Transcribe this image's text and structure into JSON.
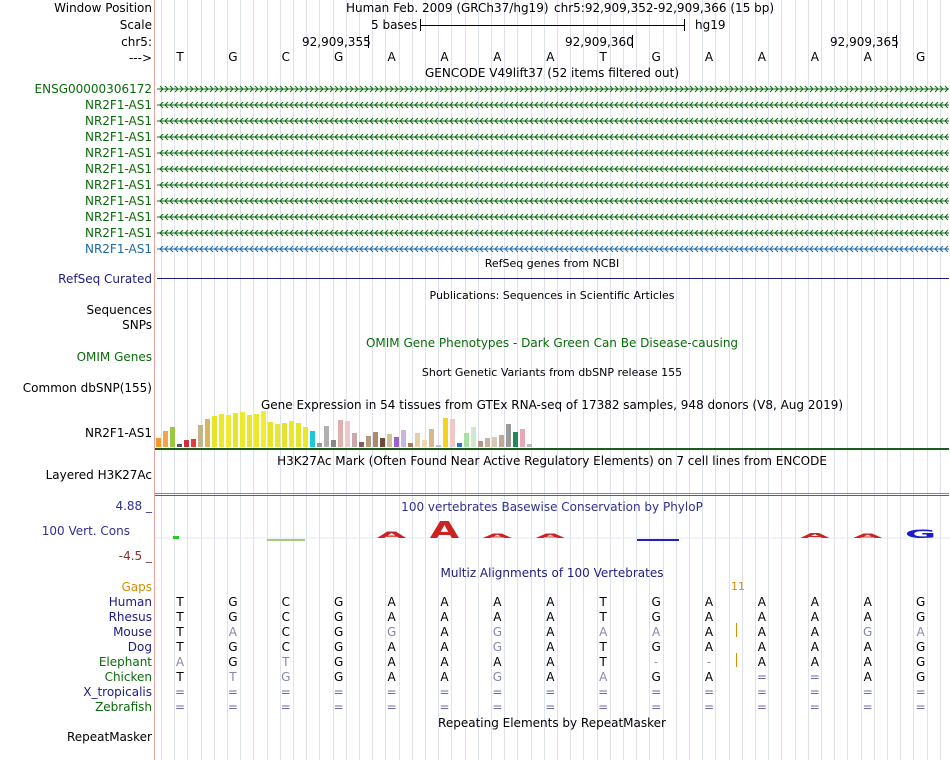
{
  "header": {
    "window_position_label": "Window Position",
    "scale_label": "Scale",
    "chrom_label": "chr5:",
    "arrow_label": "--->",
    "assembly": "Human Feb. 2009 (GRCh37/hg19)",
    "position": "chr5:92,909,352-92,909,366 (15 bp)",
    "scale_text": "5 bases",
    "db": "hg19",
    "ticks": [
      "92,909,355",
      "92,909,360",
      "92,909,365"
    ],
    "bases": [
      "T",
      "G",
      "C",
      "G",
      "A",
      "A",
      "A",
      "A",
      "T",
      "G",
      "A",
      "A",
      "A",
      "A",
      "G"
    ]
  },
  "gencode": {
    "title": "GENCODE V49lift37 (52 items filtered out)",
    "items": [
      {
        "name": "ENSG00000306172",
        "dir": ">",
        "color": "#0a6b0a"
      },
      {
        "name": "NR2F1-AS1",
        "dir": "<",
        "color": "#0a6b0a"
      },
      {
        "name": "NR2F1-AS1",
        "dir": "<",
        "color": "#0a6b0a"
      },
      {
        "name": "NR2F1-AS1",
        "dir": "<",
        "color": "#0a6b0a"
      },
      {
        "name": "NR2F1-AS1",
        "dir": "<",
        "color": "#0a6b0a"
      },
      {
        "name": "NR2F1-AS1",
        "dir": "<",
        "color": "#0a6b0a"
      },
      {
        "name": "NR2F1-AS1",
        "dir": "<",
        "color": "#0a6b0a"
      },
      {
        "name": "NR2F1-AS1",
        "dir": "<",
        "color": "#0a6b0a"
      },
      {
        "name": "NR2F1-AS1",
        "dir": "<",
        "color": "#0a6b0a"
      },
      {
        "name": "NR2F1-AS1",
        "dir": "<",
        "color": "#0a6b0a"
      },
      {
        "name": "NR2F1-AS1",
        "dir": "<",
        "color": "#1a69a8"
      }
    ]
  },
  "refseq": {
    "title": "RefSeq genes from NCBI",
    "label": "RefSeq Curated"
  },
  "publications": {
    "title": "Publications: Sequences in Scientific Articles",
    "label1": "Sequences",
    "label2": "SNPs"
  },
  "omim": {
    "title": "OMIM Gene Phenotypes - Dark Green Can Be Disease-causing",
    "label": "OMIM Genes"
  },
  "dbsnp": {
    "title": "Short Genetic Variants from dbSNP release 155",
    "label": "Common dbSNP(155)"
  },
  "gtex": {
    "title": "Gene Expression in 54 tissues from GTEx RNA-seq of 17382 samples, 948 donors (V8, Aug 2019)",
    "label": "NR2F1-AS1",
    "bars": [
      {
        "v": 0.25,
        "c": "#f39a2c"
      },
      {
        "v": 0.45,
        "c": "#f5a24a"
      },
      {
        "v": 0.55,
        "c": "#9ac93f"
      },
      {
        "v": 0.08,
        "c": "#555555"
      },
      {
        "v": 0.2,
        "c": "#c8323c"
      },
      {
        "v": 0.22,
        "c": "#e83a3a"
      },
      {
        "v": 0.62,
        "c": "#c4b48a"
      },
      {
        "v": 0.78,
        "c": "#d4b85e"
      },
      {
        "v": 0.85,
        "c": "#e5e52a"
      },
      {
        "v": 0.92,
        "c": "#e9e92c"
      },
      {
        "v": 0.88,
        "c": "#ecec2e"
      },
      {
        "v": 0.95,
        "c": "#e5e52a"
      },
      {
        "v": 0.98,
        "c": "#eaea2a"
      },
      {
        "v": 0.9,
        "c": "#e5e52a"
      },
      {
        "v": 0.93,
        "c": "#e9e92c"
      },
      {
        "v": 1.0,
        "c": "#eeee2a"
      },
      {
        "v": 0.7,
        "c": "#e5e52a"
      },
      {
        "v": 0.65,
        "c": "#e7e72c"
      },
      {
        "v": 0.68,
        "c": "#e3e330"
      },
      {
        "v": 0.72,
        "c": "#e9e92a"
      },
      {
        "v": 0.66,
        "c": "#e5e52c"
      },
      {
        "v": 0.55,
        "c": "#e9e92a"
      },
      {
        "v": 0.45,
        "c": "#1fc8d8"
      },
      {
        "v": 0.12,
        "c": "#999999"
      },
      {
        "v": 0.58,
        "c": "#b0b0b0"
      },
      {
        "v": 0.2,
        "c": "#888888"
      },
      {
        "v": 0.75,
        "c": "#e0b0b0"
      },
      {
        "v": 0.72,
        "c": "#f0c8c8"
      },
      {
        "v": 0.38,
        "c": "#c9a8a8"
      },
      {
        "v": 0.15,
        "c": "#8a5a5a"
      },
      {
        "v": 0.3,
        "c": "#b59a80"
      },
      {
        "v": 0.42,
        "c": "#a88c6c"
      },
      {
        "v": 0.25,
        "c": "#6b4a3a"
      },
      {
        "v": 0.35,
        "c": "#d2c09e"
      },
      {
        "v": 0.28,
        "c": "#9a63c8"
      },
      {
        "v": 0.48,
        "c": "#c8b8d8"
      },
      {
        "v": 0.12,
        "c": "#a57a5e"
      },
      {
        "v": 0.38,
        "c": "#e2cfa8"
      },
      {
        "v": 0.2,
        "c": "#f0d8b0"
      },
      {
        "v": 0.5,
        "c": "#d6b890"
      },
      {
        "v": 0.06,
        "c": "#c0c0c0"
      },
      {
        "v": 0.8,
        "c": "#f3d220"
      },
      {
        "v": 0.78,
        "c": "#f0c8c8"
      },
      {
        "v": 0.1,
        "c": "#1f7ad0"
      },
      {
        "v": 0.4,
        "c": "#a8e0a0"
      },
      {
        "v": 0.55,
        "c": "#d0e8d0"
      },
      {
        "v": 0.18,
        "c": "#b09888"
      },
      {
        "v": 0.25,
        "c": "#c8b0a0"
      },
      {
        "v": 0.28,
        "c": "#d8c8b8"
      },
      {
        "v": 0.32,
        "c": "#c0a898"
      },
      {
        "v": 0.65,
        "c": "#9a9a9a"
      },
      {
        "v": 0.42,
        "c": "#1f8a5a"
      },
      {
        "v": 0.5,
        "c": "#e8a8b8"
      },
      {
        "v": 0.08,
        "c": "#b9b9b9"
      }
    ]
  },
  "h3k27ac": {
    "title": "H3K27Ac Mark (Often Found Near Active Regulatory Elements) on 7 cell lines from ENCODE",
    "label": "Layered H3K27Ac"
  },
  "phylop": {
    "title": "100 vertebrates Basewise Conservation by PhyloP",
    "label": "100 Vert. Cons",
    "max": "4.88 _",
    "min": "-4.5 _",
    "letters": [
      {
        "base": "A",
        "score": 0.8,
        "color": "#cc2222"
      },
      {
        "base": "A",
        "score": 2.0,
        "color": "#cc2222"
      },
      {
        "base": "A",
        "score": 0.3,
        "color": "#cc2222"
      },
      {
        "base": "A",
        "score": 0.2,
        "color": "#cc2222"
      },
      {
        "base": "A",
        "score": 0.6,
        "color": "#cc2222"
      },
      {
        "base": "A",
        "score": 0.4,
        "color": "#cc2222"
      },
      {
        "base": "G",
        "score": 1.0,
        "color": "#1c1cc8"
      }
    ]
  },
  "multiz": {
    "title": "Multiz Alignments of 100 Vertebrates",
    "gaps_label": "Gaps",
    "gap_count": "11",
    "species": [
      {
        "name": "Human",
        "seq": [
          "T",
          "G",
          "C",
          "G",
          "A",
          "A",
          "A",
          "A",
          "T",
          "G",
          "A",
          "A",
          "A",
          "A",
          "G"
        ]
      },
      {
        "name": "Rhesus",
        "seq": [
          "T",
          "G",
          "C",
          "G",
          "A",
          "A",
          "A",
          "A",
          "T",
          "G",
          "A",
          "A",
          "A",
          "A",
          "G"
        ]
      },
      {
        "name": "Mouse",
        "seq": [
          "T",
          "A",
          "C",
          "G",
          "G",
          "A",
          "G",
          "A",
          "A",
          "A",
          "A",
          "A",
          "A",
          "G",
          "A"
        ]
      },
      {
        "name": "Dog",
        "seq": [
          "T",
          "G",
          "C",
          "G",
          "A",
          "A",
          "G",
          "A",
          "T",
          "G",
          "A",
          "A",
          "A",
          "A",
          "G"
        ]
      },
      {
        "name": "Elephant",
        "seq": [
          "A",
          "G",
          "T",
          "G",
          "A",
          "A",
          "A",
          "A",
          "T",
          "-",
          "-",
          "A",
          "A",
          "A",
          "G"
        ]
      },
      {
        "name": "Chicken",
        "seq": [
          "T",
          "T",
          "G",
          "G",
          "A",
          "A",
          "G",
          "A",
          "A",
          "G",
          "A",
          "=",
          "=",
          "A",
          "G"
        ]
      },
      {
        "name": "X_tropicalis",
        "seq": [
          "=",
          "=",
          "=",
          "=",
          "=",
          "=",
          "=",
          "=",
          "=",
          "=",
          "=",
          "=",
          "=",
          "=",
          "="
        ]
      },
      {
        "name": "Zebrafish",
        "seq": [
          "=",
          "=",
          "=",
          "=",
          "=",
          "=",
          "=",
          "=",
          "=",
          "=",
          "=",
          "=",
          "=",
          "=",
          "="
        ]
      }
    ]
  },
  "repeatmasker": {
    "title": "Repeating Elements by RepeatMasker",
    "label": "RepeatMasker"
  }
}
